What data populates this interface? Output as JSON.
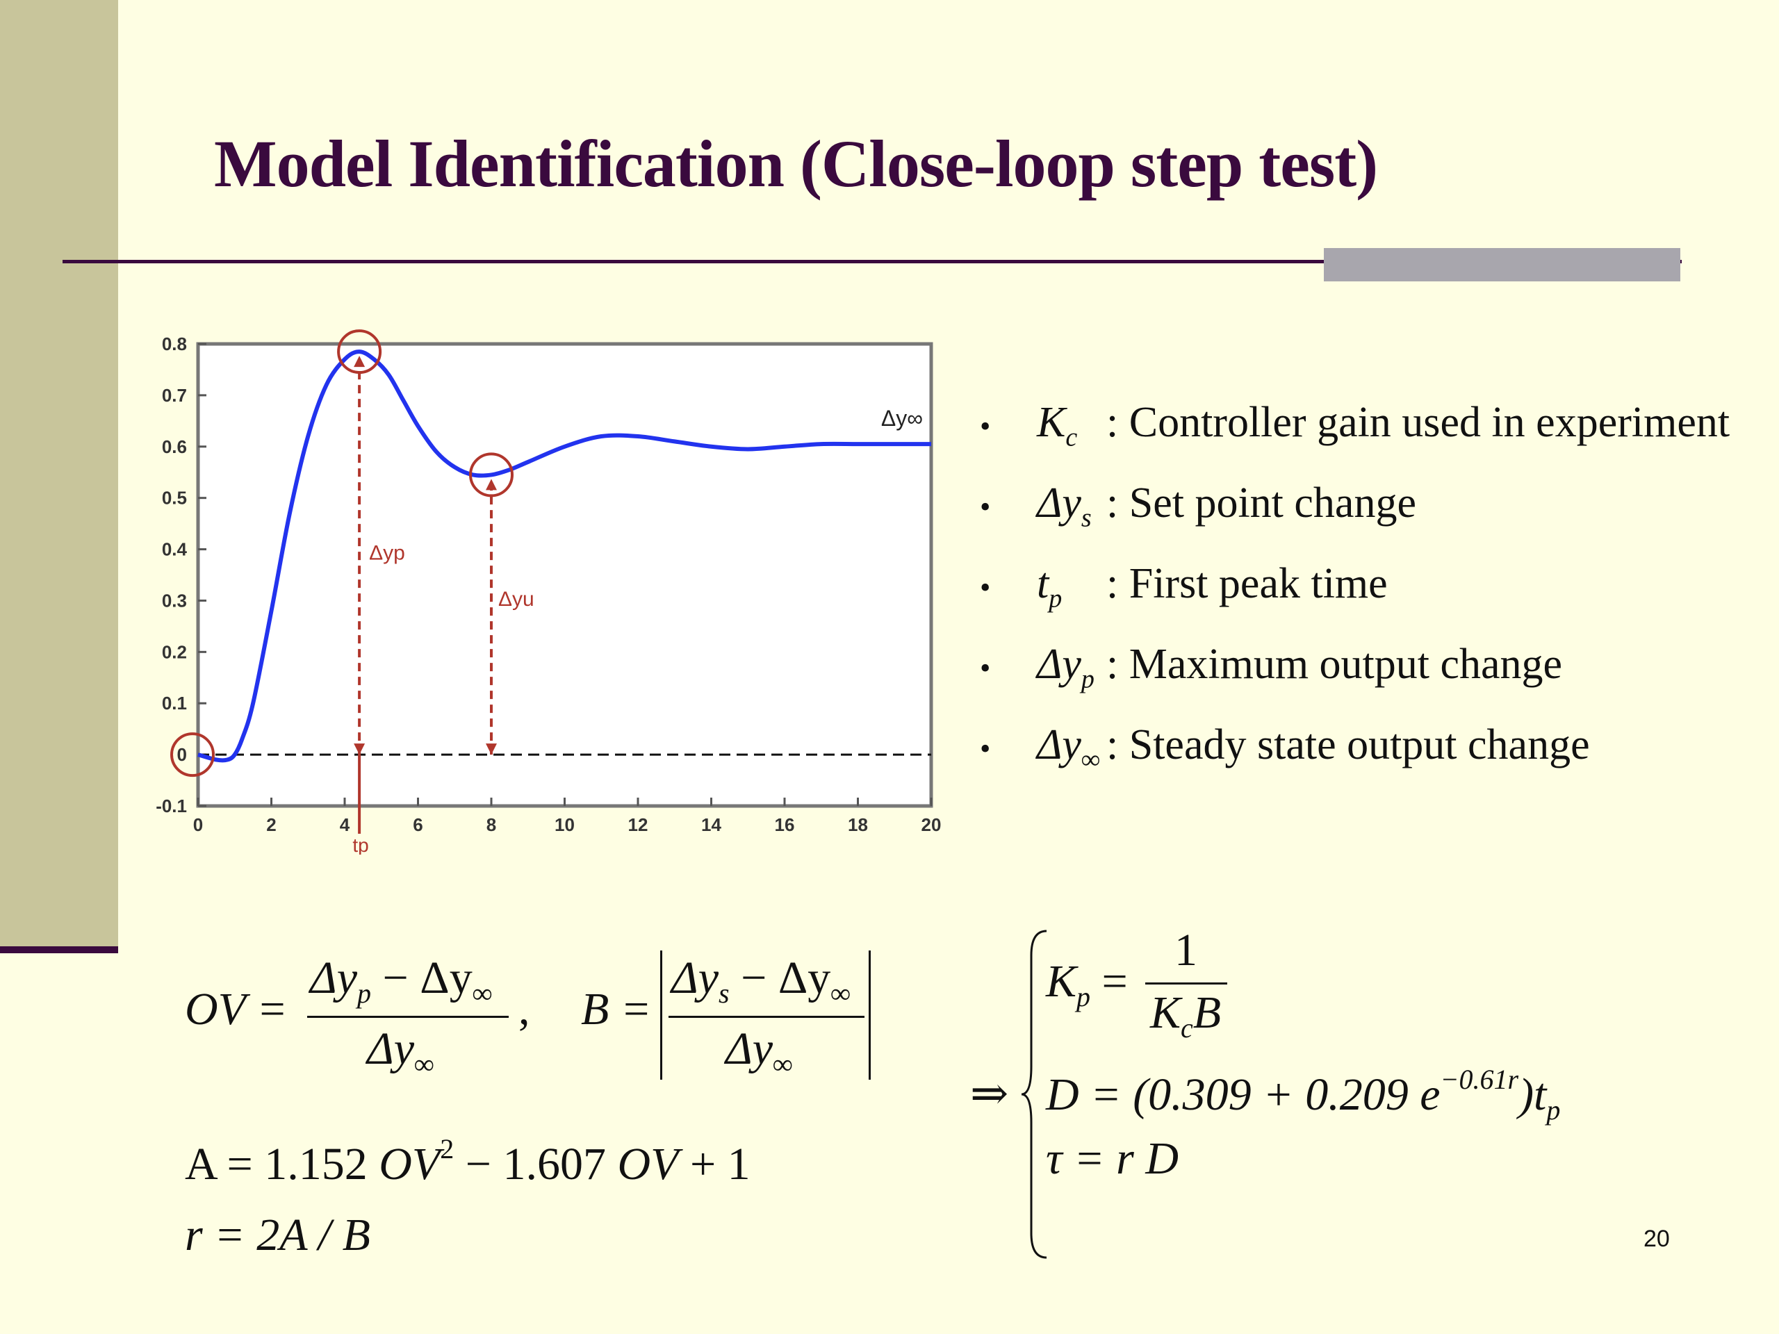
{
  "slide": {
    "title": "Model Identification (Close-loop step test)",
    "page_number": "20",
    "colors": {
      "background": "#fefee3",
      "title": "#3a0a3e",
      "left_bar": "#c8c59b",
      "accent_bar": "#a8a6ad",
      "curve": "#2233ee",
      "annotation": "#b0362c"
    }
  },
  "chart_data": {
    "type": "line",
    "title": "",
    "xlabel": "",
    "ylabel": "",
    "xlim": [
      0,
      20
    ],
    "ylim": [
      -0.1,
      0.8
    ],
    "grid": false,
    "x_ticks": [
      "0",
      "2",
      "4",
      "6",
      "8",
      "10",
      "12",
      "14",
      "16",
      "18",
      "20"
    ],
    "y_ticks": [
      "-0.1",
      "0",
      "0.1",
      "0.2",
      "0.3",
      "0.4",
      "0.5",
      "0.6",
      "0.7",
      "0.8"
    ],
    "series": [
      {
        "color": "#2233ee",
        "x": [
          0,
          0.5,
          0.8,
          1.0,
          1.2,
          1.5,
          2.0,
          2.5,
          3.0,
          3.5,
          4.0,
          4.4,
          4.8,
          5.2,
          5.6,
          6.0,
          6.5,
          7.0,
          7.5,
          8.0,
          8.5,
          9.0,
          10.0,
          11.0,
          12.0,
          13.0,
          14.0,
          15.0,
          16.0,
          17.0,
          18.0,
          19.0,
          20.0
        ],
        "y": [
          0,
          -0.01,
          -0.01,
          0.0,
          0.03,
          0.1,
          0.28,
          0.47,
          0.62,
          0.72,
          0.77,
          0.785,
          0.77,
          0.74,
          0.69,
          0.64,
          0.59,
          0.56,
          0.545,
          0.545,
          0.555,
          0.57,
          0.6,
          0.62,
          0.62,
          0.61,
          0.6,
          0.595,
          0.6,
          0.605,
          0.605,
          0.605,
          0.605
        ]
      }
    ],
    "annotations": [
      {
        "label": "Δyp",
        "x": 4.4,
        "y_from": 0,
        "y_to": 0.785
      },
      {
        "label": "Δyu",
        "x": 8.0,
        "y_from": 0,
        "y_to": 0.545
      },
      {
        "label": "tp",
        "x": 4.4
      },
      {
        "label": "Δy∞",
        "x": 20,
        "y": 0.605
      }
    ],
    "circles": [
      {
        "x": 0,
        "y": 0
      },
      {
        "x": 4.4,
        "y": 0.785
      },
      {
        "x": 8.0,
        "y": 0.545
      }
    ],
    "baseline_y": 0
  },
  "bullets": [
    {
      "sym": "K",
      "sub": "c",
      "text": ": Controller gain used in experiment"
    },
    {
      "sym": "Δy",
      "sub": "s",
      "text": ": Set point change"
    },
    {
      "sym": "t",
      "sub": "p",
      "text": ": First peak time"
    },
    {
      "sym": "Δy",
      "sub": "p",
      "text": ": Maximum output change"
    },
    {
      "sym": "Δy",
      "sub": "∞",
      "text": ": Steady state output change"
    }
  ],
  "equations": {
    "ov_lhs": "OV =",
    "ov_num": "Δy",
    "ov_num_sub1": "p",
    "ov_num_mid": " − Δy",
    "ov_num_sub2": "∞",
    "ov_den": "Δy",
    "ov_den_sub": "∞",
    "comma": ",",
    "b_lhs": "B =",
    "b_num": "Δy",
    "b_num_sub1": "s",
    "b_num_mid": " − Δy",
    "b_num_sub2": "∞",
    "b_den": "Δy",
    "b_den_sub": "∞",
    "a_eq_1": "A = 1.152 ",
    "a_eq_ov": "OV",
    "a_eq_sup": "2",
    "a_eq_2": " − 1.607 ",
    "a_eq_ov2": "OV",
    "a_eq_3": " + 1",
    "r_eq": "r = 2A / B",
    "implies": "⇒",
    "kp_lhs": "K",
    "kp_sub": "p",
    "kp_eq": " =",
    "kp_num": "1",
    "kp_den": "K",
    "kp_den_sub": "c",
    "kp_den_b": "B",
    "d_eq_1": "D = (0.309 + 0.209 e",
    "d_eq_sup": "−0.61r",
    "d_eq_2": ")t",
    "d_eq_sub": "p",
    "tau_eq": "τ = r D"
  }
}
